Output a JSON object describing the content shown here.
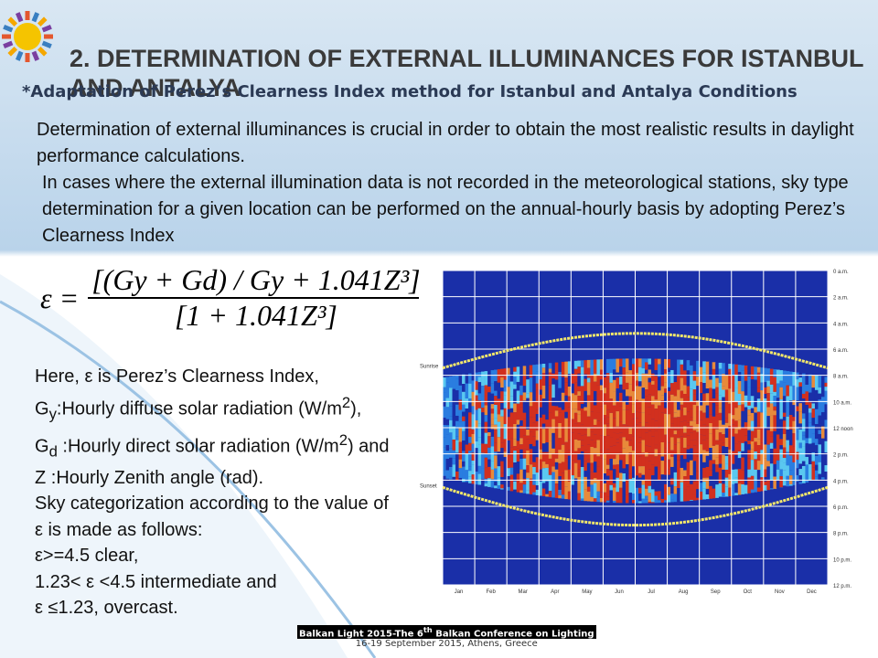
{
  "header": {
    "title": "2. DETERMINATION OF EXTERNAL ILLUMINANCES FOR ISTANBUL AND ANTALYA",
    "subtitle": "*Adaptation of Perez’s Clearness Index method for Istanbul and Antalya Conditions"
  },
  "intro": [
    "Determination of external illuminances is crucial in order to obtain the most realistic results in daylight performance calculations.",
    "In cases where the external illumination data is not recorded in the meteorological stations, sky type determination for a given location can be performed on the annual-hourly basis by adopting Perez’s Clearness Index"
  ],
  "formula": {
    "lhs": "ε =",
    "numerator": "[(Gy + Gd) / Gy + 1.041Z³]",
    "denominator": "[1 + 1.041Z³]"
  },
  "definitions": [
    [
      "Here, ε is Perez’s Clearness Index,"
    ],
    [
      "G",
      {
        "sub": "y"
      },
      ":Hourly diffuse solar radiation (W/m",
      {
        "sup": "2"
      },
      "),"
    ],
    [
      "G",
      {
        "sub": "d"
      },
      "  :Hourly direct solar radiation (W/m",
      {
        "sup": "2"
      },
      ") and"
    ],
    [
      "Z :Hourly Zenith angle (rad)."
    ],
    [
      "Sky categorization according to the value of ε is made as follows:"
    ],
    [
      "ε>=4.5 clear,"
    ],
    [
      "1.23< ε <4.5 intermediate and"
    ],
    [
      "ε ≤1.23, overcast."
    ]
  ],
  "figure": {
    "hour_labels": [
      "0 a.m.",
      "2 a.m.",
      "4 a.m.",
      "6 a.m.",
      "8 a.m.",
      "10 a.m.",
      "12 noon",
      "2 p.m.",
      "4 p.m.",
      "6 p.m.",
      "8 p.m.",
      "10 p.m.",
      "12 p.m."
    ],
    "month_labels": [
      "Jan",
      "Feb",
      "Mar",
      "Apr",
      "May",
      "Jun",
      "Jul",
      "Aug",
      "Sep",
      "Oct",
      "Nov",
      "Dec"
    ],
    "sunrise_label": "Sunrise",
    "sunset_label": "Sunset"
  },
  "footer": {
    "line1": [
      "Balkan Light 2015-The 6",
      {
        "sup": "th"
      },
      " Balkan Conference on Lighting"
    ],
    "line2": "16-19 September 2015, Athens, Greece"
  }
}
